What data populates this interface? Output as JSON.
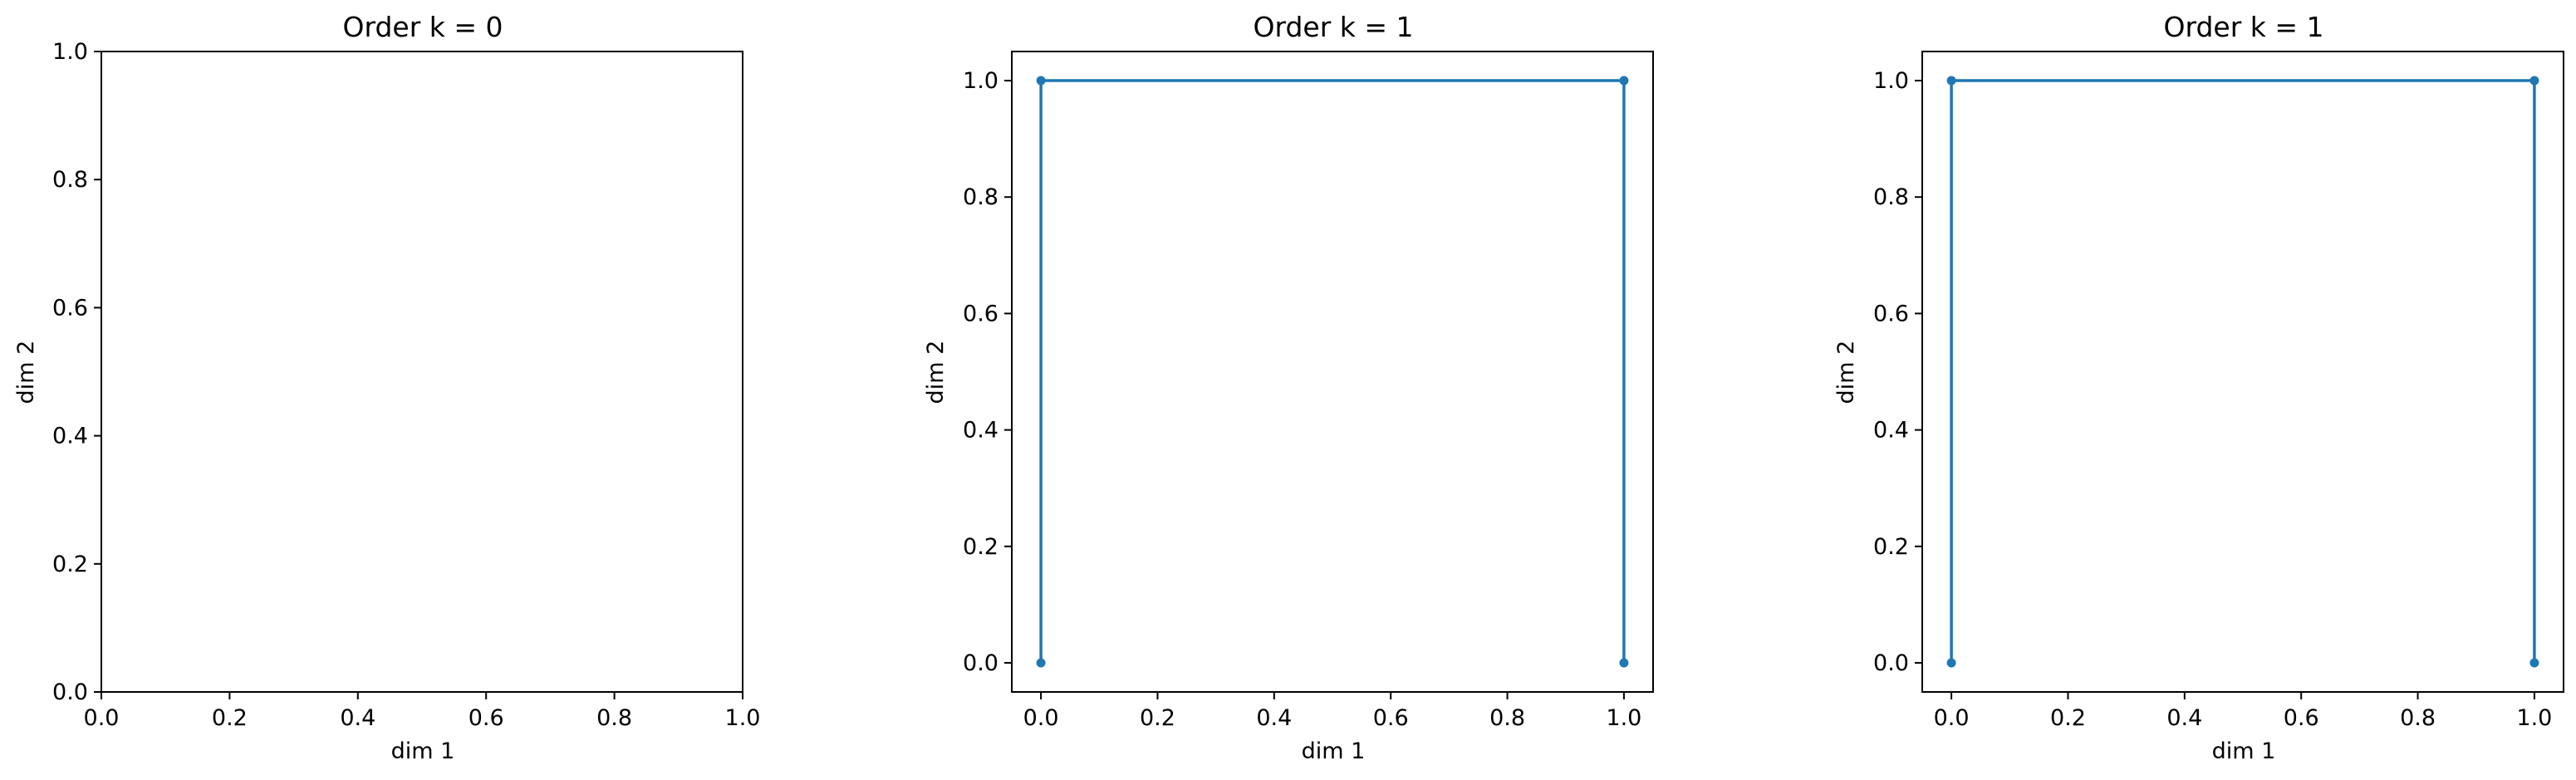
{
  "chart_data": [
    {
      "type": "line",
      "title": "Order k = 0",
      "xlabel": "dim 1",
      "ylabel": "dim 2",
      "xlim": [
        0.0,
        1.0
      ],
      "ylim": [
        0.0,
        1.0
      ],
      "xticks": [
        "0.0",
        "0.2",
        "0.4",
        "0.6",
        "0.8",
        "1.0"
      ],
      "yticks": [
        "0.0",
        "0.2",
        "0.4",
        "0.6",
        "0.8",
        "1.0"
      ],
      "grid": false,
      "series": [
        {
          "color": "#1f77b4",
          "x": [],
          "y": []
        }
      ]
    },
    {
      "type": "line",
      "title": "Order k = 1",
      "xlabel": "dim 1",
      "ylabel": "dim 2",
      "xlim": [
        -0.05,
        1.05
      ],
      "ylim": [
        -0.05,
        1.05
      ],
      "xticks": [
        "0.0",
        "0.2",
        "0.4",
        "0.6",
        "0.8",
        "1.0"
      ],
      "yticks": [
        "0.0",
        "0.2",
        "0.4",
        "0.6",
        "0.8",
        "1.0"
      ],
      "grid": false,
      "series": [
        {
          "color": "#1f77b4",
          "x": [
            0.0,
            0.0,
            1.0,
            1.0
          ],
          "y": [
            0.0,
            1.0,
            1.0,
            0.0
          ]
        }
      ]
    },
    {
      "type": "line",
      "title": "Order k = 1",
      "xlabel": "dim 1",
      "ylabel": "dim 2",
      "xlim": [
        -0.05,
        1.05
      ],
      "ylim": [
        -0.05,
        1.05
      ],
      "xticks": [
        "0.0",
        "0.2",
        "0.4",
        "0.6",
        "0.8",
        "1.0"
      ],
      "yticks": [
        "0.0",
        "0.2",
        "0.4",
        "0.6",
        "0.8",
        "1.0"
      ],
      "grid": false,
      "series": [
        {
          "color": "#1f77b4",
          "x": [
            0.0,
            0.0,
            1.0,
            1.0
          ],
          "y": [
            0.0,
            1.0,
            1.0,
            0.0
          ]
        }
      ]
    }
  ]
}
